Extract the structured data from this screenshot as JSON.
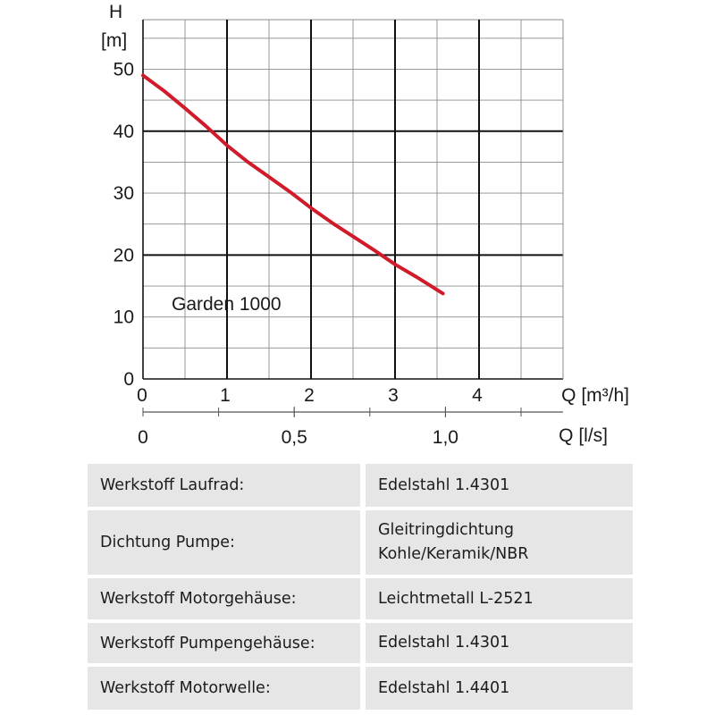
{
  "chart_data": {
    "type": "line",
    "ylabel_lines": [
      "H",
      "[m]"
    ],
    "xlabel": "Q [m³/h]",
    "x2label": "Q [l/s]",
    "x_ticks": [
      "0",
      "1",
      "2",
      "3",
      "4"
    ],
    "x_tick_values": [
      0,
      1,
      2,
      3,
      4
    ],
    "x2_ticks": [
      "0",
      "0,5",
      "1,0"
    ],
    "x2_tick_values": [
      0,
      0.5,
      1.0
    ],
    "y_ticks": [
      "0",
      "10",
      "20",
      "30",
      "40",
      "50"
    ],
    "y_tick_values": [
      0,
      10,
      20,
      30,
      40,
      50
    ],
    "xlim": [
      0,
      5
    ],
    "ylim": [
      0,
      58
    ],
    "grid": true,
    "series": [
      {
        "name": "Garden 1000",
        "color": "#d01c2a",
        "x": [
          0,
          0.25,
          0.5,
          0.75,
          1.0,
          1.25,
          1.5,
          1.75,
          2.0,
          2.25,
          2.5,
          2.75,
          3.0,
          3.25,
          3.57
        ],
        "y": [
          49,
          46.5,
          43.7,
          40.8,
          37.7,
          35.0,
          32.6,
          30.2,
          27.6,
          25.2,
          23.0,
          20.8,
          18.5,
          16.5,
          13.8
        ]
      }
    ]
  },
  "specs": {
    "rows": [
      {
        "label": "Werkstoff Laufrad:",
        "value_lines": [
          "Edelstahl 1.4301"
        ]
      },
      {
        "label": "Dichtung Pumpe:",
        "value_lines": [
          "Gleitringdichtung",
          "Kohle/Keramik/NBR"
        ]
      },
      {
        "label": "Werkstoff Motorgehäuse:",
        "value_lines": [
          "Leichtmetall L-2521"
        ]
      },
      {
        "label": "Werkstoff Pumpengehäuse:",
        "value_lines": [
          "Edelstahl 1.4301"
        ]
      },
      {
        "label": "Werkstoff Motorwelle:",
        "value_lines": [
          "Edelstahl 1.4401"
        ]
      }
    ]
  }
}
